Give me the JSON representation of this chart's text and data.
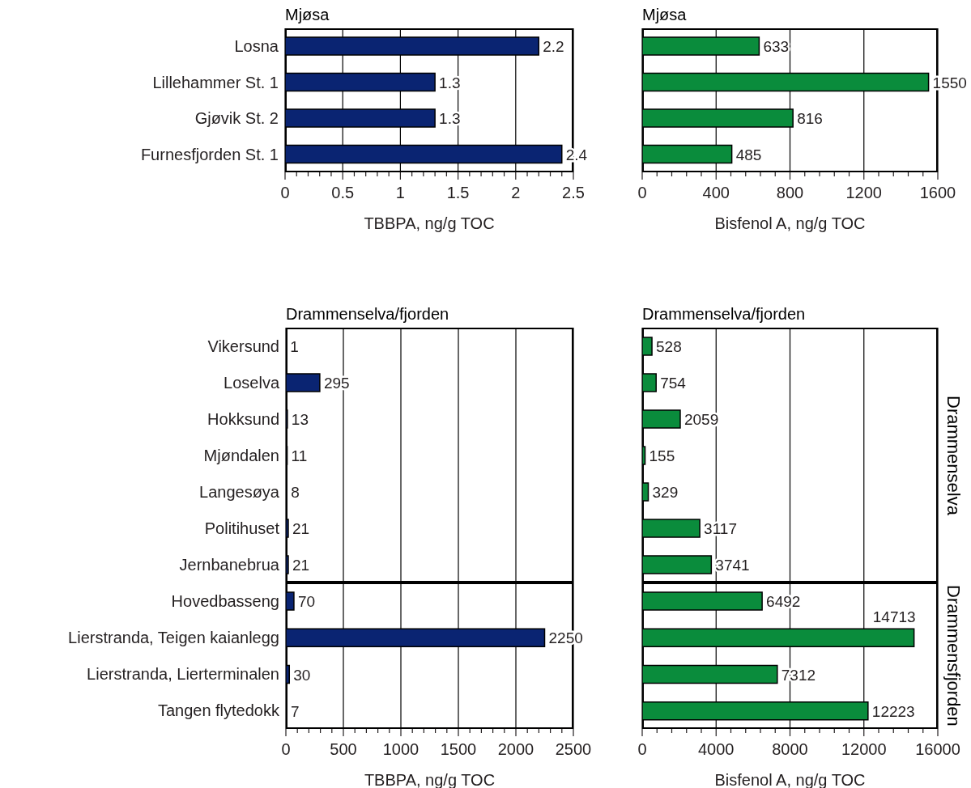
{
  "chart_data": [
    {
      "type": "bar",
      "orientation": "horizontal",
      "title": "Mjøsa",
      "xlabel": "TBBPA, ng/g TOC",
      "categories": [
        "Losna",
        "Lillehammer St. 1",
        "Gjøvik St. 2",
        "Furnesfjorden St. 1"
      ],
      "values": [
        2.2,
        1.3,
        1.3,
        2.4
      ],
      "color": "#0a2472",
      "xlim": [
        0,
        2.5
      ],
      "xticks": [
        0,
        {
          "value": 0.1,
          "label": null
        },
        {
          "value": 0.2,
          "label": null
        },
        {
          "value": 0.3,
          "label": null
        },
        {
          "value": 0.4,
          "label": null
        },
        0.5,
        {
          "value": 0.6,
          "label": null
        },
        {
          "value": 0.7,
          "label": null
        },
        {
          "value": 0.8,
          "label": null
        },
        {
          "value": 0.9,
          "label": null
        },
        1,
        {
          "value": 1.1,
          "label": null
        },
        {
          "value": 1.2,
          "label": null
        },
        {
          "value": 1.3,
          "label": null
        },
        {
          "value": 1.4,
          "label": null
        },
        1.5,
        {
          "value": 1.6,
          "label": null
        },
        {
          "value": 1.7,
          "label": null
        },
        {
          "value": 1.8,
          "label": null
        },
        {
          "value": 1.9,
          "label": null
        },
        2,
        {
          "value": 2.1,
          "label": null
        },
        {
          "value": 2.2,
          "label": null
        },
        {
          "value": 2.3,
          "label": null
        },
        {
          "value": 2.4,
          "label": null
        },
        2.5
      ],
      "grid": "x",
      "data_labels": true
    },
    {
      "type": "bar",
      "orientation": "horizontal",
      "title": "Mjøsa",
      "xlabel": "Bisfenol A, ng/g TOC",
      "categories": [
        null,
        null,
        null,
        null
      ],
      "values": [
        633,
        1550,
        816,
        485
      ],
      "color": "#0a8c3c",
      "xlim": [
        0,
        1600
      ],
      "xticks": [
        0,
        {
          "value": 80,
          "label": null
        },
        {
          "value": 160,
          "label": null
        },
        {
          "value": 240,
          "label": null
        },
        {
          "value": 320,
          "label": null
        },
        400,
        {
          "value": 480,
          "label": null
        },
        {
          "value": 560,
          "label": null
        },
        {
          "value": 640,
          "label": null
        },
        {
          "value": 720,
          "label": null
        },
        800,
        {
          "value": 880,
          "label": null
        },
        {
          "value": 960,
          "label": null
        },
        {
          "value": 1040,
          "label": null
        },
        {
          "value": 1120,
          "label": null
        },
        1200,
        {
          "value": 1280,
          "label": null
        },
        {
          "value": 1360,
          "label": null
        },
        {
          "value": 1440,
          "label": null
        },
        {
          "value": 1520,
          "label": null
        },
        1600
      ],
      "grid": "x",
      "data_labels": true,
      "tick_labels": "x"
    },
    {
      "type": "bar",
      "orientation": "horizontal",
      "title": "Drammenselva/fjorden",
      "categories": [
        "Vikersund",
        "Loselva",
        "Hokksund",
        "Mjøndalen",
        "Langesøya",
        "Politihuset",
        "Jernbanebrua"
      ],
      "values": [
        1,
        295,
        13,
        11,
        8,
        21,
        21
      ],
      "color": "#0a2472",
      "xlim": [
        0,
        2500
      ],
      "xticks": [
        0,
        500,
        1000,
        1500,
        2000,
        2500
      ],
      "grid": "x",
      "data_labels": true,
      "tick_labels": "y"
    },
    {
      "type": "bar",
      "orientation": "horizontal",
      "xlabel": "TBBPA, ng/g TOC",
      "categories": [
        "Hovedbasseng",
        "Lierstranda, Teigen kaianlegg",
        "Lierstranda, Lierterminalen",
        "Tangen flytedokk"
      ],
      "values": [
        70,
        2250,
        30,
        7
      ],
      "color": "#0a2472",
      "xlim": [
        0,
        2500
      ],
      "xticks": [
        0,
        {
          "value": 100,
          "label": null
        },
        {
          "value": 200,
          "label": null
        },
        {
          "value": 300,
          "label": null
        },
        {
          "value": 400,
          "label": null
        },
        500,
        {
          "value": 600,
          "label": null
        },
        {
          "value": 700,
          "label": null
        },
        {
          "value": 800,
          "label": null
        },
        {
          "value": 900,
          "label": null
        },
        1000,
        {
          "value": 1100,
          "label": null
        },
        {
          "value": 1200,
          "label": null
        },
        {
          "value": 1300,
          "label": null
        },
        {
          "value": 1400,
          "label": null
        },
        1500,
        {
          "value": 1600,
          "label": null
        },
        {
          "value": 1700,
          "label": null
        },
        {
          "value": 1800,
          "label": null
        },
        {
          "value": 1900,
          "label": null
        },
        2000,
        {
          "value": 2100,
          "label": null
        },
        {
          "value": 2200,
          "label": null
        },
        {
          "value": 2300,
          "label": null
        },
        {
          "value": 2400,
          "label": null
        },
        2500
      ],
      "grid": "x",
      "data_labels": true
    },
    {
      "type": "bar",
      "orientation": "horizontal",
      "title": "Drammenselva/fjorden",
      "annotations": [
        "Drammenselva"
      ],
      "categories": [
        null,
        null,
        null,
        null,
        null,
        null,
        null
      ],
      "values": [
        528,
        754,
        2059,
        155,
        329,
        3117,
        3741
      ],
      "color": "#0a8c3c",
      "xlim": [
        0,
        16000
      ],
      "xticks": [
        0,
        4000,
        8000,
        12000,
        16000
      ],
      "grid": "x",
      "data_labels": true,
      "tick_labels": false
    },
    {
      "type": "bar",
      "orientation": "horizontal",
      "xlabel": "Bisfenol A, ng/g TOC",
      "annotations": [
        "Drammensfjorden"
      ],
      "categories": [
        null,
        null,
        null,
        null
      ],
      "values": [
        6492,
        14713,
        7312,
        12223
      ],
      "color": "#0a8c3c",
      "xlim": [
        0,
        16000
      ],
      "xticks": [
        0,
        {
          "value": 800,
          "label": null
        },
        {
          "value": 1600,
          "label": null
        },
        {
          "value": 2400,
          "label": null
        },
        {
          "value": 3200,
          "label": null
        },
        4000,
        {
          "value": 4800,
          "label": null
        },
        {
          "value": 5600,
          "label": null
        },
        {
          "value": 6400,
          "label": null
        },
        {
          "value": 7200,
          "label": null
        },
        8000,
        {
          "value": 8800,
          "label": null
        },
        {
          "value": 9600,
          "label": null
        },
        {
          "value": 10400,
          "label": null
        },
        {
          "value": 11200,
          "label": null
        },
        12000,
        {
          "value": 12800,
          "label": null
        },
        {
          "value": 13600,
          "label": null
        },
        {
          "value": 14400,
          "label": null
        },
        {
          "value": 15200,
          "label": null
        },
        16000
      ],
      "grid": "x",
      "data_labels": true,
      "tick_labels": "x"
    }
  ]
}
